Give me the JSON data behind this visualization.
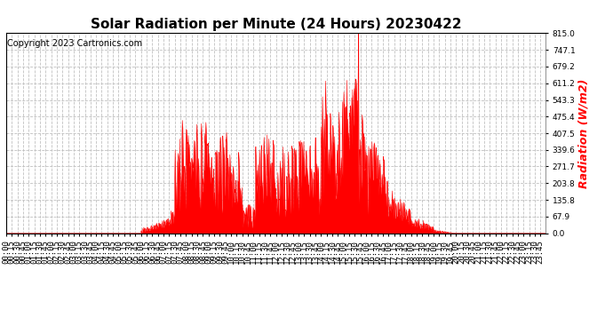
{
  "title": "Solar Radiation per Minute (24 Hours) 20230422",
  "copyright_text": "Copyright 2023 Cartronics.com",
  "ylabel": "Radiation (W/m2)",
  "ylabel_color": "#ff0000",
  "fill_color": "#ff0000",
  "line_color": "#ff0000",
  "background_color": "#ffffff",
  "grid_color": "#c0c0c0",
  "dashed_line_color": "#ff0000",
  "ylim": [
    0.0,
    815.0
  ],
  "yticks": [
    0.0,
    67.9,
    135.8,
    203.8,
    271.7,
    339.6,
    407.5,
    475.4,
    543.3,
    611.2,
    679.2,
    747.1,
    815.0
  ],
  "title_fontsize": 11,
  "copyright_fontsize": 7,
  "ylabel_fontsize": 9,
  "tick_fontsize": 6.5
}
